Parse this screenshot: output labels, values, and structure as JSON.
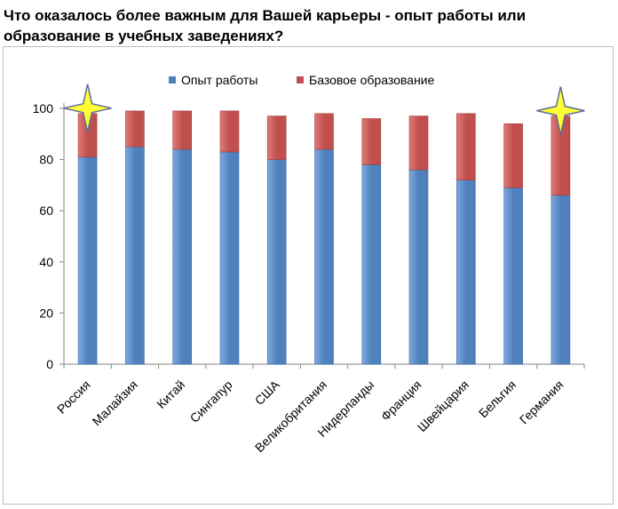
{
  "question": "Что оказалось более важным для Вашей карьеры - опыт работы или образование в учебных заведениях?",
  "chart_data": {
    "type": "bar",
    "stacked": true,
    "categories": [
      "Россия",
      "Малайзия",
      "Китай",
      "Сингапур",
      "США",
      "Великобритания",
      "Нидерланды",
      "Франция",
      "Швейцария",
      "Бельгия",
      "Германия"
    ],
    "series": [
      {
        "name": "Опыт работы",
        "color": "#4f81bd",
        "values": [
          81,
          85,
          84,
          83,
          80,
          84,
          78,
          76,
          72,
          69,
          66
        ]
      },
      {
        "name": "Базовое образование",
        "color": "#c0504d",
        "values": [
          17,
          14,
          15,
          16,
          17,
          14,
          18,
          21,
          26,
          25,
          31
        ]
      }
    ],
    "ylim": [
      0,
      100
    ],
    "yticks": [
      "0",
      "20",
      "40",
      "60",
      "80",
      "100"
    ],
    "grid": false,
    "legend_position": "top-center",
    "highlight_marker": "yellow-star",
    "highlighted_categories": [
      "Россия",
      "Германия"
    ]
  }
}
